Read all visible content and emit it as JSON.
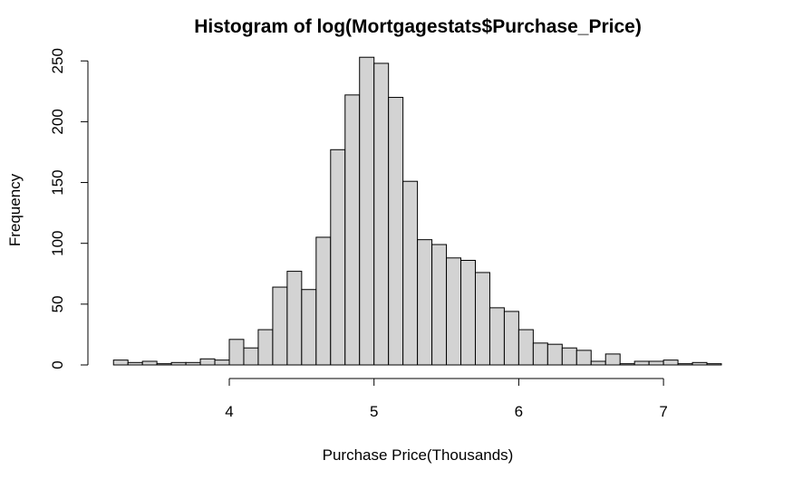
{
  "chart_data": {
    "type": "histogram",
    "title": "Histogram of log(Mortgagestats$Purchase_Price)",
    "xlabel": "Purchase Price(Thousands)",
    "ylabel": "Frequency",
    "bin_width": 0.1,
    "bin_start": 3.2,
    "bin_end": 7.4,
    "counts": [
      4,
      2,
      3,
      1,
      2,
      2,
      5,
      4,
      21,
      14,
      29,
      64,
      77,
      62,
      105,
      177,
      222,
      253,
      248,
      220,
      151,
      103,
      99,
      88,
      86,
      76,
      47,
      44,
      29,
      18,
      17,
      14,
      12,
      3,
      9,
      1,
      3,
      3,
      4,
      1,
      2,
      1
    ],
    "xlim": [
      3.2,
      7.4
    ],
    "ylim": [
      0,
      250
    ],
    "x_ticks": [
      4,
      5,
      6,
      7
    ],
    "y_ticks": [
      0,
      50,
      100,
      150,
      200,
      250
    ],
    "grid": false,
    "legend": "none",
    "bar_color": "#d3d3d3",
    "edge_color": "#000000"
  }
}
